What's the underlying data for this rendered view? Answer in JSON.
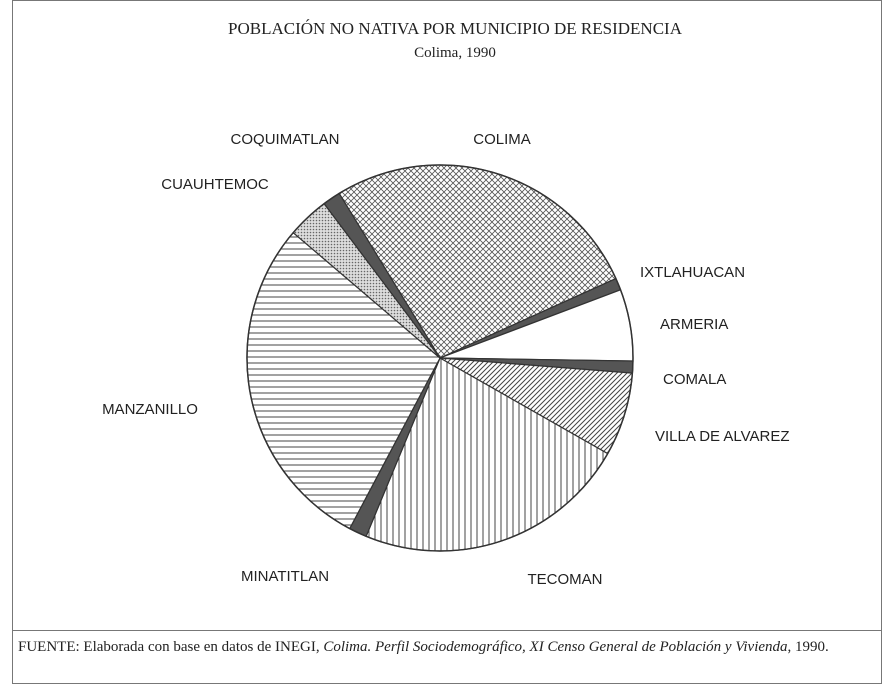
{
  "chart_data": {
    "type": "pie",
    "title": "POBLACIÓN NO NATIVA POR MUNICIPIO DE RESIDENCIA",
    "subtitle": "Colima, 1990",
    "categories": [
      "COLIMA",
      "IXTLAHUACAN",
      "ARMERIA",
      "COMALA",
      "VILLA DE ALVAREZ",
      "TECOMAN",
      "MINATITLAN",
      "MANZANILLO",
      "CUAUHTEMOC",
      "COQUIMATLAN"
    ],
    "values": [
      27,
      1,
      6,
      1,
      7,
      23,
      1.5,
      28.5,
      3.5,
      1.5
    ],
    "patterns": [
      "crosshatch",
      "solid",
      "blank",
      "solid",
      "diagonal",
      "vertical",
      "solid",
      "horizontal",
      "dots",
      "solid"
    ]
  },
  "source": {
    "prefix": "FUENTE: Elaborada con base en datos de INEGI, ",
    "title": "Colima. Perfil Sociodemográfico, XI Censo General de Población y Vivienda",
    "suffix": ", 1990."
  }
}
